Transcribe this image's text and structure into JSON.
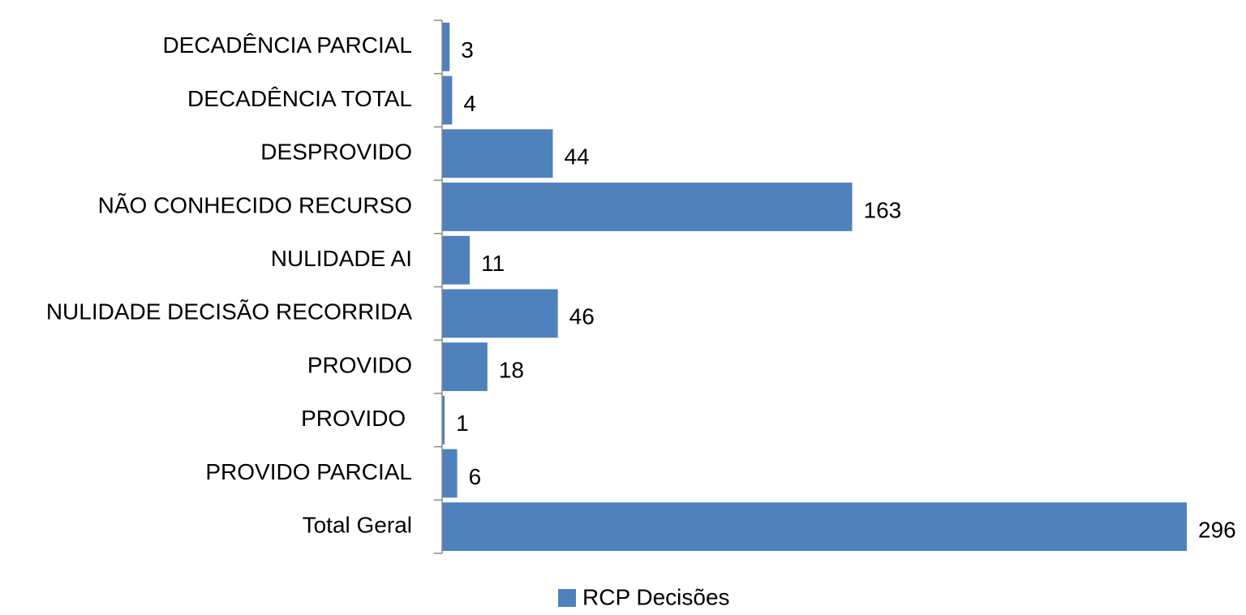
{
  "chart_data": {
    "type": "bar",
    "orientation": "horizontal",
    "categories": [
      "DECADÊNCIA PARCIAL",
      "DECADÊNCIA TOTAL",
      "DESPROVIDO",
      "NÃO CONHECIDO RECURSO",
      "NULIDADE AI",
      "NULIDADE DECISÃO RECORRIDA",
      "PROVIDO",
      "PROVIDO ",
      "PROVIDO PARCIAL",
      "Total Geral"
    ],
    "series": [
      {
        "name": "RCP Decisões",
        "color": "#4f81bd",
        "values": [
          3,
          4,
          44,
          163,
          11,
          46,
          18,
          1,
          6,
          296
        ]
      }
    ],
    "xlim": [
      0,
      296
    ],
    "legend": "bottom"
  }
}
